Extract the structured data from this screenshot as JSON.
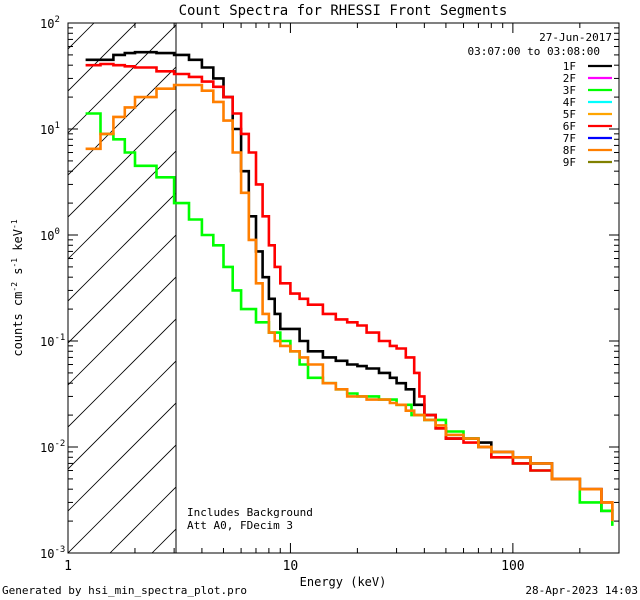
{
  "chart_data": {
    "type": "line",
    "title": "Count Spectra for RHESSI Front Segments",
    "xlabel": "Energy (keV)",
    "ylabel": "counts cm",
    "ylabel_sup1": "-2",
    "ylabel_mid": " s",
    "ylabel_sup2": "-1",
    "ylabel_end": " keV",
    "ylabel_sup3": "-1",
    "xscale": "log",
    "yscale": "log",
    "xlim": [
      1,
      300
    ],
    "ylim": [
      0.001,
      100
    ],
    "x_tick_labels": [
      {
        "value": 10,
        "label": "10"
      },
      {
        "value": 100,
        "label": "100"
      }
    ],
    "x_end_labels": {
      "min": "1"
    },
    "y_tick_labels": [
      {
        "exp": -3,
        "label": "-3"
      },
      {
        "exp": -2,
        "label": "-2"
      },
      {
        "exp": -1,
        "label": "-1"
      },
      {
        "exp": 0,
        "label": "0"
      },
      {
        "exp": 1,
        "label": "1"
      },
      {
        "exp": 2,
        "label": "2"
      }
    ],
    "y_tick_base": "10",
    "shaded_region": {
      "x_max": 3,
      "style": "hatched"
    },
    "date_text": "27-Jun-2017",
    "time_text": "03:07:00 to 03:08:00",
    "annotation_line1": "Includes Background",
    "annotation_line2": "Att A0, FDecim 3",
    "footer_left": "Generated by hsi_min_spectra_plot.pro",
    "footer_right": "28-Apr-2023 14:03",
    "legend": [
      {
        "name": "1F",
        "color": "#000000"
      },
      {
        "name": "2F",
        "color": "#ff00ff"
      },
      {
        "name": "3F",
        "color": "#00ff00"
      },
      {
        "name": "4F",
        "color": "#00ffff"
      },
      {
        "name": "5F",
        "color": "#ffa500"
      },
      {
        "name": "6F",
        "color": "#ff0000"
      },
      {
        "name": "7F",
        "color": "#0000ff"
      },
      {
        "name": "8F",
        "color": "#ff7f00"
      },
      {
        "name": "9F",
        "color": "#808000"
      }
    ],
    "series": [
      {
        "name": "1F",
        "color": "#000000",
        "points": [
          [
            1.2,
            45
          ],
          [
            1.4,
            45
          ],
          [
            1.6,
            50
          ],
          [
            1.8,
            52
          ],
          [
            2,
            53
          ],
          [
            2.5,
            52
          ],
          [
            3,
            50
          ],
          [
            3.5,
            45
          ],
          [
            4,
            38
          ],
          [
            4.5,
            30
          ],
          [
            5,
            20
          ],
          [
            5.5,
            10
          ],
          [
            6,
            4
          ],
          [
            6.5,
            1.5
          ],
          [
            7,
            0.7
          ],
          [
            7.5,
            0.4
          ],
          [
            8,
            0.25
          ],
          [
            8.5,
            0.18
          ],
          [
            9,
            0.13
          ],
          [
            10,
            0.13
          ],
          [
            11,
            0.1
          ],
          [
            12,
            0.08
          ],
          [
            14,
            0.07
          ],
          [
            16,
            0.065
          ],
          [
            18,
            0.06
          ],
          [
            20,
            0.058
          ],
          [
            22,
            0.055
          ],
          [
            25,
            0.05
          ],
          [
            28,
            0.045
          ],
          [
            30,
            0.04
          ],
          [
            33,
            0.035
          ],
          [
            36,
            0.025
          ],
          [
            40,
            0.02
          ],
          [
            45,
            0.015
          ],
          [
            50,
            0.012
          ],
          [
            60,
            0.012
          ],
          [
            70,
            0.011
          ],
          [
            80,
            0.009
          ],
          [
            100,
            0.008
          ],
          [
            120,
            0.007
          ],
          [
            150,
            0.005
          ],
          [
            200,
            0.004
          ],
          [
            250,
            0.0025
          ],
          [
            280,
            0.002
          ]
        ]
      },
      {
        "name": "3F",
        "color": "#00ff00",
        "points": [
          [
            1.2,
            14
          ],
          [
            1.4,
            9
          ],
          [
            1.6,
            8
          ],
          [
            1.8,
            6
          ],
          [
            2,
            4.5
          ],
          [
            2.5,
            3.5
          ],
          [
            3,
            2
          ],
          [
            3.5,
            1.4
          ],
          [
            4,
            1
          ],
          [
            4.5,
            0.8
          ],
          [
            5,
            0.5
          ],
          [
            5.5,
            0.3
          ],
          [
            6,
            0.2
          ],
          [
            7,
            0.15
          ],
          [
            8,
            0.12
          ],
          [
            9,
            0.1
          ],
          [
            10,
            0.08
          ],
          [
            11,
            0.06
          ],
          [
            12,
            0.045
          ],
          [
            14,
            0.04
          ],
          [
            16,
            0.035
          ],
          [
            18,
            0.032
          ],
          [
            20,
            0.03
          ],
          [
            25,
            0.028
          ],
          [
            30,
            0.025
          ],
          [
            35,
            0.02
          ],
          [
            40,
            0.018
          ],
          [
            50,
            0.014
          ],
          [
            60,
            0.012
          ],
          [
            70,
            0.01
          ],
          [
            80,
            0.008
          ],
          [
            100,
            0.007
          ],
          [
            120,
            0.006
          ],
          [
            150,
            0.005
          ],
          [
            200,
            0.003
          ],
          [
            250,
            0.0025
          ],
          [
            280,
            0.0018
          ]
        ]
      },
      {
        "name": "6F",
        "color": "#ff0000",
        "points": [
          [
            1.2,
            40
          ],
          [
            1.4,
            41
          ],
          [
            1.6,
            40
          ],
          [
            1.8,
            39
          ],
          [
            2,
            38
          ],
          [
            2.5,
            35
          ],
          [
            3,
            33
          ],
          [
            3.5,
            31
          ],
          [
            4,
            28
          ],
          [
            4.5,
            25
          ],
          [
            5,
            20
          ],
          [
            5.5,
            14
          ],
          [
            6,
            9
          ],
          [
            6.5,
            6
          ],
          [
            7,
            3
          ],
          [
            7.5,
            1.5
          ],
          [
            8,
            0.8
          ],
          [
            8.5,
            0.5
          ],
          [
            9,
            0.35
          ],
          [
            10,
            0.28
          ],
          [
            11,
            0.25
          ],
          [
            12,
            0.22
          ],
          [
            14,
            0.18
          ],
          [
            16,
            0.16
          ],
          [
            18,
            0.15
          ],
          [
            20,
            0.14
          ],
          [
            22,
            0.12
          ],
          [
            25,
            0.1
          ],
          [
            28,
            0.09
          ],
          [
            30,
            0.085
          ],
          [
            33,
            0.07
          ],
          [
            36,
            0.05
          ],
          [
            38,
            0.03
          ],
          [
            40,
            0.02
          ],
          [
            45,
            0.015
          ],
          [
            50,
            0.012
          ],
          [
            60,
            0.011
          ],
          [
            70,
            0.01
          ],
          [
            80,
            0.008
          ],
          [
            100,
            0.007
          ],
          [
            120,
            0.006
          ],
          [
            150,
            0.005
          ],
          [
            200,
            0.004
          ],
          [
            250,
            0.003
          ],
          [
            280,
            0.0025
          ]
        ]
      },
      {
        "name": "8F",
        "color": "#ff7f00",
        "points": [
          [
            1.2,
            6.5
          ],
          [
            1.4,
            9
          ],
          [
            1.6,
            13
          ],
          [
            1.8,
            16
          ],
          [
            2,
            20
          ],
          [
            2.5,
            24
          ],
          [
            3,
            26
          ],
          [
            3.5,
            26
          ],
          [
            4,
            23
          ],
          [
            4.5,
            18
          ],
          [
            5,
            12
          ],
          [
            5.5,
            6
          ],
          [
            6,
            2.5
          ],
          [
            6.5,
            0.9
          ],
          [
            7,
            0.35
          ],
          [
            7.5,
            0.18
          ],
          [
            8,
            0.12
          ],
          [
            8.5,
            0.1
          ],
          [
            9,
            0.09
          ],
          [
            10,
            0.08
          ],
          [
            11,
            0.07
          ],
          [
            12,
            0.06
          ],
          [
            14,
            0.04
          ],
          [
            16,
            0.035
          ],
          [
            18,
            0.03
          ],
          [
            20,
            0.03
          ],
          [
            22,
            0.028
          ],
          [
            25,
            0.028
          ],
          [
            28,
            0.026
          ],
          [
            30,
            0.025
          ],
          [
            33,
            0.022
          ],
          [
            36,
            0.02
          ],
          [
            40,
            0.018
          ],
          [
            45,
            0.016
          ],
          [
            50,
            0.013
          ],
          [
            60,
            0.012
          ],
          [
            70,
            0.01
          ],
          [
            80,
            0.009
          ],
          [
            100,
            0.008
          ],
          [
            120,
            0.007
          ],
          [
            150,
            0.005
          ],
          [
            200,
            0.004
          ],
          [
            250,
            0.003
          ],
          [
            280,
            0.002
          ]
        ]
      }
    ]
  }
}
